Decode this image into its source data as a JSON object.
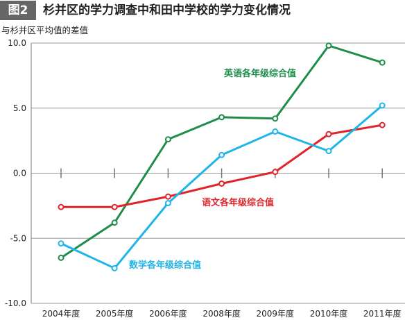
{
  "header": {
    "figure_tag": "图2",
    "title": "杉并区的学力调查中和田中学校的学力变化情况"
  },
  "chart_data": {
    "type": "line",
    "title": "杉并区的学力调查中和田中学校的学力变化情况",
    "xlabel": "",
    "ylabel": "与杉并区平均值的差值",
    "categories": [
      "2004年度",
      "2005年度",
      "2006年度",
      "2008年度",
      "2009年度",
      "2010年度",
      "2011年度"
    ],
    "ylim": [
      -10,
      10
    ],
    "yticks": [
      -10,
      -5,
      0,
      5,
      10
    ],
    "ytick_labels": [
      "-10.0",
      "-5.0",
      "0.0",
      "5.0",
      "10.0"
    ],
    "grid": true,
    "series": [
      {
        "name": "英语各年级综合值",
        "color": "#1e8c4a",
        "values": [
          -6.5,
          -3.8,
          2.6,
          4.3,
          4.2,
          9.8,
          8.5
        ]
      },
      {
        "name": "语文各年级综合值",
        "color": "#e0242a",
        "values": [
          -2.6,
          -2.6,
          -1.8,
          -0.8,
          0.1,
          3.0,
          3.7
        ]
      },
      {
        "name": "数学各年级综合值",
        "color": "#1fb5e8",
        "values": [
          -5.4,
          -7.3,
          -2.3,
          1.4,
          3.2,
          1.7,
          5.2
        ]
      }
    ]
  }
}
